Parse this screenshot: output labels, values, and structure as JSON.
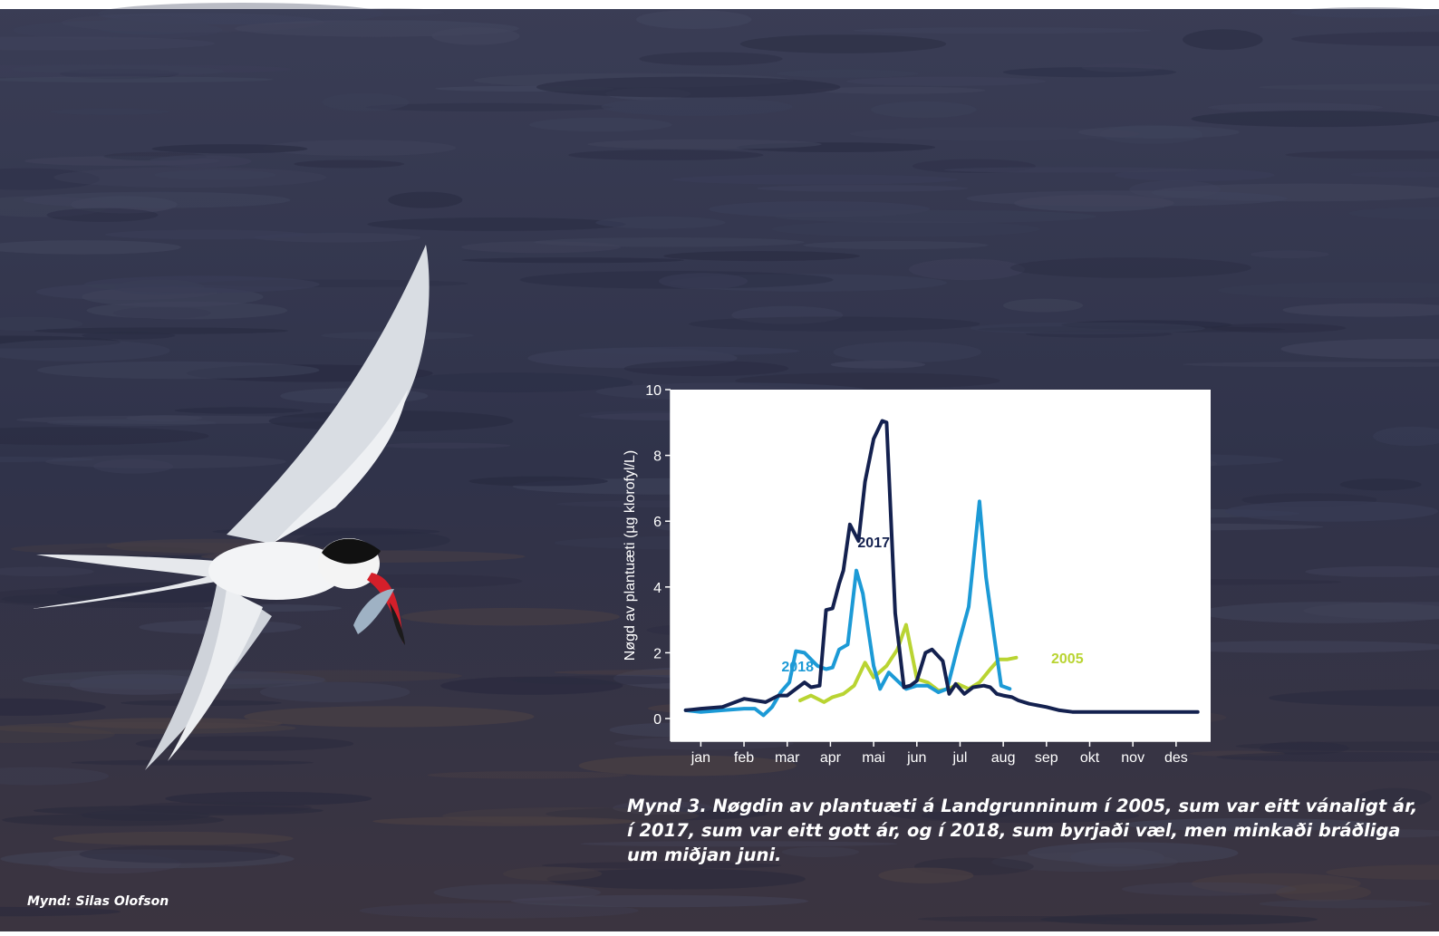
{
  "caption": "Mynd 3. Nøgdin av plantuæti á Landgrunninum í 2005, sum var eitt vánaligt ár, í 2017, sum var eitt gott ár, og í 2018, sum byrjaði væl, men minkaði bráðliga um miðjan juni.",
  "credit": "Mynd: Silas Olofson",
  "colors": {
    "s2017": "#14214f",
    "s2018": "#1c9ad6",
    "s2005": "#b9d432",
    "water": "#2f3347"
  },
  "chart_data": {
    "type": "line",
    "title": "",
    "xlabel": "",
    "ylabel": "Nøgd av plantuæti (µg klorofyl/L)",
    "ylim": [
      0,
      10
    ],
    "xlim": [
      0.3,
      12.8
    ],
    "yticks": [
      "0",
      "2",
      "4",
      "6",
      "8",
      "10"
    ],
    "xticks": [
      "jan",
      "feb",
      "mar",
      "apr",
      "mai",
      "jun",
      "jul",
      "aug",
      "sep",
      "okt",
      "nov",
      "des"
    ],
    "grid": false,
    "series": [
      {
        "name": "2017",
        "x": [
          0.65,
          1.0,
          1.5,
          2.0,
          2.5,
          2.8,
          3.0,
          3.25,
          3.4,
          3.55,
          3.75,
          3.9,
          4.05,
          4.2,
          4.3,
          4.45,
          4.65,
          4.8,
          5.0,
          5.2,
          5.3,
          5.5,
          5.7,
          5.85,
          6.0,
          6.2,
          6.35,
          6.6,
          6.75,
          6.9,
          7.1,
          7.3,
          7.55,
          7.7,
          7.85,
          8.0,
          8.2,
          8.35,
          8.6,
          9.0,
          9.3,
          9.6,
          10.0,
          10.5,
          11.0,
          11.5,
          12.0,
          12.5
        ],
        "values": [
          0.25,
          0.3,
          0.35,
          0.6,
          0.5,
          0.7,
          0.7,
          0.95,
          1.1,
          0.95,
          1.0,
          3.3,
          3.35,
          4.1,
          4.5,
          5.9,
          5.4,
          7.2,
          8.5,
          9.05,
          9.0,
          3.2,
          0.95,
          1.0,
          1.15,
          2.0,
          2.1,
          1.75,
          0.75,
          1.05,
          0.75,
          0.95,
          1.0,
          0.95,
          0.75,
          0.7,
          0.65,
          0.55,
          0.45,
          0.35,
          0.25,
          0.2,
          0.2,
          0.2,
          0.2,
          0.2,
          0.2,
          0.2
        ]
      },
      {
        "name": "2018",
        "x": [
          0.65,
          1.0,
          1.5,
          2.0,
          2.25,
          2.45,
          2.65,
          2.85,
          3.05,
          3.2,
          3.4,
          3.7,
          3.9,
          4.05,
          4.2,
          4.4,
          4.6,
          4.75,
          5.0,
          5.15,
          5.35,
          5.55,
          5.75,
          6.0,
          6.25,
          6.5,
          6.7,
          6.95,
          7.2,
          7.45,
          7.6,
          7.8,
          7.95,
          8.15
        ],
        "values": [
          0.25,
          0.2,
          0.25,
          0.3,
          0.3,
          0.1,
          0.35,
          0.8,
          1.1,
          2.05,
          2.0,
          1.6,
          1.5,
          1.55,
          2.1,
          2.25,
          4.5,
          3.8,
          1.6,
          0.9,
          1.4,
          1.15,
          0.9,
          1.0,
          1.0,
          0.8,
          0.9,
          2.2,
          3.4,
          6.6,
          4.3,
          2.4,
          1.0,
          0.9
        ]
      },
      {
        "name": "2005",
        "x": [
          3.3,
          3.55,
          3.85,
          4.05,
          4.3,
          4.55,
          4.8,
          5.0,
          5.3,
          5.55,
          5.75,
          6.0,
          6.25,
          6.5,
          6.75,
          6.95,
          7.2,
          7.45,
          7.7,
          7.9,
          8.1,
          8.3
        ],
        "values": [
          0.55,
          0.7,
          0.5,
          0.65,
          0.75,
          1.0,
          1.7,
          1.25,
          1.6,
          2.1,
          2.85,
          1.2,
          1.1,
          0.85,
          0.9,
          1.05,
          0.9,
          1.1,
          1.5,
          1.8,
          1.8,
          1.85
        ]
      }
    ]
  }
}
